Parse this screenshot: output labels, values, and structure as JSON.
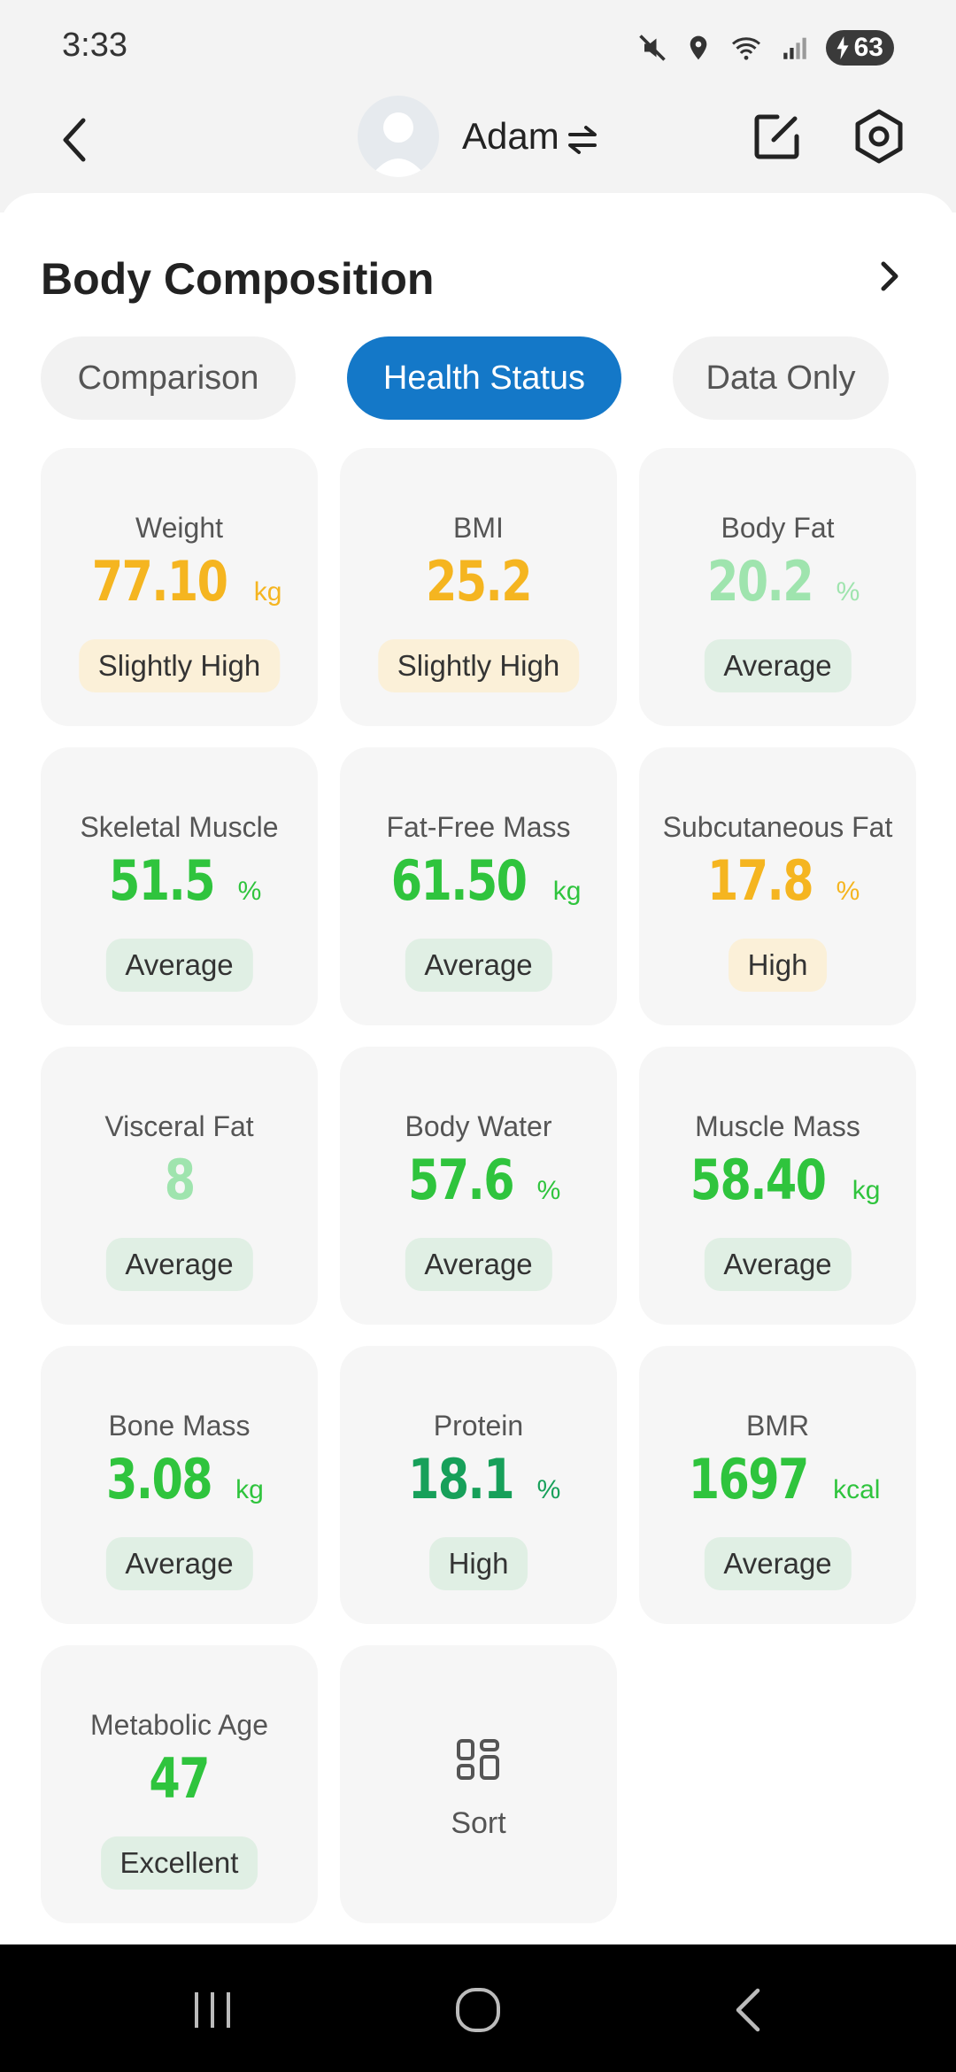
{
  "status_bar": {
    "time": "3:33",
    "battery": "63",
    "icons": [
      "mute-icon",
      "location-icon",
      "wifi-icon",
      "signal-icon",
      "battery-icon"
    ]
  },
  "header": {
    "user_name": "Adam",
    "icons": [
      "back-icon",
      "avatar",
      "swap-icon",
      "edit-icon",
      "settings-icon"
    ]
  },
  "section": {
    "title": "Body Composition"
  },
  "tabs": [
    {
      "label": "Comparison",
      "active": false
    },
    {
      "label": "Health Status",
      "active": true
    },
    {
      "label": "Data Only",
      "active": false
    }
  ],
  "colors": {
    "accent": "#1478c8",
    "yellow": "#f5b520",
    "green": "#2fc43d",
    "light_green": "#9fe4ae",
    "dark_green": "#17a05a"
  },
  "cards": [
    {
      "label": "Weight",
      "value": "77.10",
      "unit": "kg",
      "status": "Slightly High",
      "color": "#f5b520",
      "badge": "yellow"
    },
    {
      "label": "BMI",
      "value": "25.2",
      "unit": "",
      "status": "Slightly High",
      "color": "#f5b520",
      "badge": "yellow"
    },
    {
      "label": "Body Fat",
      "value": "20.2",
      "unit": "%",
      "status": "Average",
      "color": "#9fe4ae",
      "badge": "green"
    },
    {
      "label": "Skeletal Muscle",
      "value": "51.5",
      "unit": "%",
      "status": "Average",
      "color": "#2fc43d",
      "badge": "green"
    },
    {
      "label": "Fat-Free Mass",
      "value": "61.50",
      "unit": "kg",
      "status": "Average",
      "color": "#2fc43d",
      "badge": "green"
    },
    {
      "label": "Subcutaneous Fat",
      "value": "17.8",
      "unit": "%",
      "status": "High",
      "color": "#f5b520",
      "badge": "yellow"
    },
    {
      "label": "Visceral Fat",
      "value": "8",
      "unit": "",
      "status": "Average",
      "color": "#9fe4ae",
      "badge": "green"
    },
    {
      "label": "Body Water",
      "value": "57.6",
      "unit": "%",
      "status": "Average",
      "color": "#2fc43d",
      "badge": "green"
    },
    {
      "label": "Muscle Mass",
      "value": "58.40",
      "unit": "kg",
      "status": "Average",
      "color": "#2fc43d",
      "badge": "green"
    },
    {
      "label": "Bone Mass",
      "value": "3.08",
      "unit": "kg",
      "status": "Average",
      "color": "#2fc43d",
      "badge": "green"
    },
    {
      "label": "Protein",
      "value": "18.1",
      "unit": "%",
      "status": "High",
      "color": "#17a05a",
      "badge": "green"
    },
    {
      "label": "BMR",
      "value": "1697",
      "unit": "kcal",
      "status": "Average",
      "color": "#2fc43d",
      "badge": "green"
    },
    {
      "label": "Metabolic Age",
      "value": "47",
      "unit": "",
      "status": "Excellent",
      "color": "#2fc43d",
      "badge": "green"
    }
  ],
  "sort": {
    "label": "Sort",
    "icon": "sort-icon"
  },
  "nav": {
    "icons": [
      "recents-icon",
      "home-icon",
      "back-nav-icon"
    ]
  }
}
